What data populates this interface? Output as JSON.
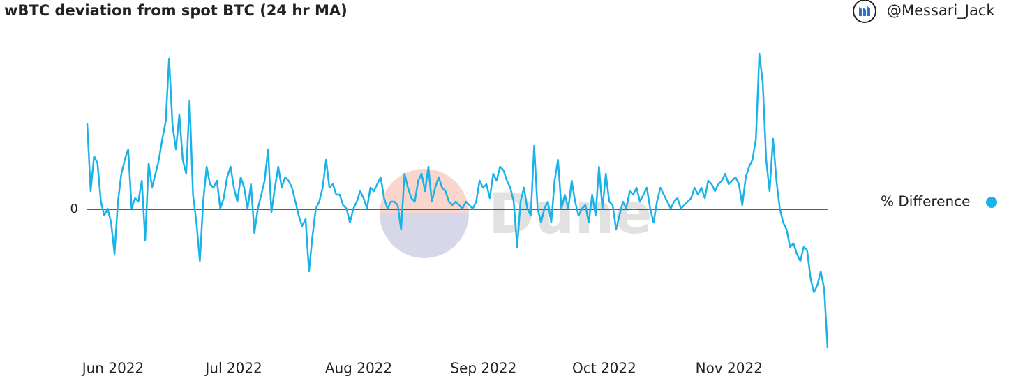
{
  "chart_data": {
    "type": "line",
    "title": "wBTC deviation from spot BTC (24 hr MA)",
    "handle": "@Messari_Jack",
    "watermark": "Dune",
    "series": [
      {
        "name": "% Difference",
        "color": "#1ab2e8",
        "values": [
          1.23,
          0.26,
          0.76,
          0.66,
          0.11,
          -0.09,
          0.01,
          -0.19,
          -0.64,
          0.11,
          0.51,
          0.71,
          0.86,
          0.01,
          0.16,
          0.11,
          0.41,
          -0.44,
          0.66,
          0.31,
          0.51,
          0.71,
          1.01,
          1.26,
          2.16,
          1.21,
          0.86,
          1.36,
          0.71,
          0.51,
          1.56,
          0.21,
          -0.19,
          -0.74,
          0.11,
          0.61,
          0.36,
          0.31,
          0.41,
          0.01,
          0.16,
          0.46,
          0.61,
          0.31,
          0.11,
          0.46,
          0.31,
          0.01,
          0.36,
          -0.34,
          0.01,
          0.21,
          0.41,
          0.86,
          -0.04,
          0.31,
          0.61,
          0.31,
          0.46,
          0.41,
          0.31,
          0.11,
          -0.09,
          -0.24,
          -0.14,
          -0.89,
          -0.39,
          0.01,
          0.11,
          0.31,
          0.71,
          0.31,
          0.36,
          0.21,
          0.21,
          0.06,
          0.01,
          -0.19,
          0.01,
          0.11,
          0.26,
          0.16,
          0.01,
          0.31,
          0.26,
          0.36,
          0.46,
          0.16,
          0.01,
          0.11,
          0.11,
          0.06,
          -0.29,
          0.51,
          0.31,
          0.16,
          0.11,
          0.41,
          0.51,
          0.26,
          0.61,
          0.11,
          0.31,
          0.46,
          0.31,
          0.26,
          0.11,
          0.06,
          0.11,
          0.06,
          0.01,
          0.11,
          0.06,
          0.01,
          0.11,
          0.41,
          0.31,
          0.36,
          0.16,
          0.51,
          0.41,
          0.61,
          0.56,
          0.41,
          0.31,
          0.11,
          -0.54,
          0.11,
          0.31,
          0.01,
          -0.09,
          0.91,
          0.01,
          -0.19,
          0.01,
          0.11,
          -0.19,
          0.41,
          0.71,
          0.01,
          0.21,
          0.01,
          0.41,
          0.11,
          -0.09,
          0.01,
          0.06,
          -0.19,
          0.21,
          -0.09,
          0.61,
          0.01,
          0.51,
          0.11,
          0.06,
          -0.29,
          -0.09,
          0.11,
          0.01,
          0.26,
          0.21,
          0.31,
          0.11,
          0.21,
          0.31,
          0.01,
          -0.19,
          0.11,
          0.31,
          0.21,
          0.11,
          0.01,
          0.11,
          0.16,
          0.01,
          0.06,
          0.11,
          0.16,
          0.31,
          0.21,
          0.31,
          0.16,
          0.41,
          0.36,
          0.26,
          0.36,
          0.41,
          0.51,
          0.36,
          0.41,
          0.46,
          0.36,
          0.06,
          0.46,
          0.61,
          0.71,
          1.01,
          2.23,
          1.81,
          0.71,
          0.26,
          1.01,
          0.41,
          0.01,
          -0.19,
          -0.29,
          -0.54,
          -0.49,
          -0.64,
          -0.74,
          -0.54,
          -0.59,
          -0.99,
          -1.19,
          -1.09,
          -0.89,
          -1.14,
          -1.99
        ]
      }
    ],
    "ylim": [
      -2.1,
      2.4
    ],
    "yticks": [
      0
    ],
    "xticks": [
      {
        "value": "2022-06",
        "label": "Jun 2022"
      },
      {
        "value": "2022-07",
        "label": "Jul 2022"
      },
      {
        "value": "2022-08",
        "label": "Aug 2022"
      },
      {
        "value": "2022-09",
        "label": "Sep 2022"
      },
      {
        "value": "2022-10",
        "label": "Oct 2022"
      },
      {
        "value": "2022-11",
        "label": "Nov 2022"
      }
    ]
  }
}
